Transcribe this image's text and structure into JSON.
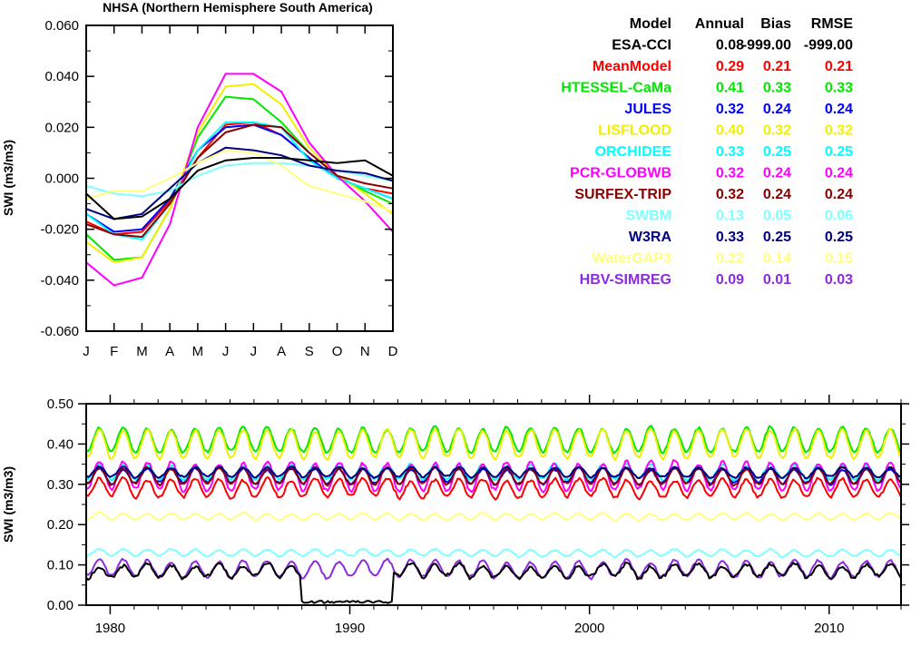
{
  "chart_data": [
    {
      "type": "line",
      "title": "NHSA (Northern Hemisphere South America)",
      "ylabel": "SWI (m3/m3)",
      "xlabel": "",
      "ylim": [
        -0.06,
        0.06
      ],
      "yticks": [
        "0.060",
        "0.040",
        "0.020",
        "0.000",
        "-0.020",
        "-0.040",
        "-0.060"
      ],
      "categories": [
        "J",
        "F",
        "M",
        "A",
        "M",
        "J",
        "J",
        "A",
        "S",
        "O",
        "N",
        "D"
      ],
      "series": [
        {
          "name": "MeanModel",
          "color": "#ff0000",
          "values": [
            -0.017,
            -0.022,
            -0.021,
            -0.009,
            0.008,
            0.021,
            0.022,
            0.017,
            0.008,
            0.0,
            -0.004,
            -0.006
          ]
        },
        {
          "name": "HTESSEL-CaMa",
          "color": "#00e800",
          "values": [
            -0.022,
            -0.032,
            -0.031,
            -0.012,
            0.016,
            0.032,
            0.031,
            0.022,
            0.01,
            0.001,
            -0.005,
            -0.01
          ]
        },
        {
          "name": "JULES",
          "color": "#0000ff",
          "values": [
            -0.014,
            -0.021,
            -0.02,
            -0.008,
            0.011,
            0.02,
            0.021,
            0.017,
            0.008,
            0.0,
            -0.004,
            -0.008
          ]
        },
        {
          "name": "LISFLOOD",
          "color": "#f0f000",
          "values": [
            -0.025,
            -0.033,
            -0.031,
            -0.012,
            0.018,
            0.036,
            0.037,
            0.029,
            0.012,
            0.001,
            -0.006,
            -0.014
          ]
        },
        {
          "name": "ORCHIDEE",
          "color": "#00ffff",
          "values": [
            -0.014,
            -0.022,
            -0.024,
            -0.01,
            0.011,
            0.022,
            0.022,
            0.02,
            0.007,
            0.0,
            -0.004,
            -0.008
          ]
        },
        {
          "name": "PCR-GLOBWB",
          "color": "#ff00ff",
          "values": [
            -0.033,
            -0.042,
            -0.039,
            -0.018,
            0.02,
            0.041,
            0.041,
            0.034,
            0.014,
            0.001,
            -0.009,
            -0.021
          ]
        },
        {
          "name": "SURFEX-TRIP",
          "color": "#8b0000",
          "values": [
            -0.018,
            -0.022,
            -0.023,
            -0.01,
            0.008,
            0.018,
            0.021,
            0.02,
            0.01,
            0.001,
            -0.002,
            -0.004
          ]
        },
        {
          "name": "SWBM",
          "color": "#80ffff",
          "values": [
            -0.003,
            -0.006,
            -0.007,
            -0.005,
            0.001,
            0.005,
            0.006,
            0.006,
            0.005,
            0.003,
            0.001,
            -0.001
          ]
        },
        {
          "name": "W3RA",
          "color": "#000080",
          "values": [
            -0.012,
            -0.016,
            -0.014,
            -0.004,
            0.006,
            0.012,
            0.011,
            0.009,
            0.005,
            0.003,
            0.002,
            -0.001
          ]
        },
        {
          "name": "WaterGAP3",
          "color": "#ffff80",
          "values": [
            -0.008,
            -0.005,
            -0.005,
            0.0,
            0.006,
            0.011,
            0.01,
            0.005,
            -0.003,
            -0.006,
            -0.009,
            -0.013
          ]
        },
        {
          "name": "ESA-CCI",
          "color": "#000000",
          "values": [
            -0.006,
            -0.016,
            -0.015,
            -0.008,
            0.003,
            0.007,
            0.008,
            0.008,
            0.007,
            0.006,
            0.007,
            0.001
          ]
        }
      ]
    },
    {
      "type": "line",
      "title": "",
      "ylabel": "SWI (m3/m3)",
      "xlabel": "",
      "xlim": [
        1979,
        2013
      ],
      "ylim": [
        0.0,
        0.5
      ],
      "xticks": [
        1980,
        1990,
        2000,
        2010
      ],
      "yticks": [
        "0.50",
        "0.40",
        "0.30",
        "0.20",
        "0.10",
        "0.00"
      ],
      "series": [
        {
          "name": "HTESSEL-CaMa",
          "color": "#00e800",
          "mean": 0.41,
          "amplitude": 0.03,
          "noise": 0.006
        },
        {
          "name": "LISFLOOD",
          "color": "#f0f000",
          "mean": 0.4,
          "amplitude": 0.035,
          "noise": 0.006
        },
        {
          "name": "ORCHIDEE",
          "color": "#00ffff",
          "mean": 0.33,
          "amplitude": 0.018,
          "noise": 0.005
        },
        {
          "name": "PCR-GLOBWB",
          "color": "#ff00ff",
          "mean": 0.32,
          "amplitude": 0.035,
          "noise": 0.008
        },
        {
          "name": "JULES",
          "color": "#0000ff",
          "mean": 0.32,
          "amplitude": 0.018,
          "noise": 0.005
        },
        {
          "name": "SURFEX-TRIP",
          "color": "#8b0000",
          "mean": 0.32,
          "amplitude": 0.02,
          "noise": 0.005
        },
        {
          "name": "W3RA",
          "color": "#000080",
          "mean": 0.33,
          "amplitude": 0.012,
          "noise": 0.004
        },
        {
          "name": "MeanModel",
          "color": "#ff0000",
          "mean": 0.29,
          "amplitude": 0.022,
          "noise": 0.007
        },
        {
          "name": "WaterGAP3",
          "color": "#ffff80",
          "mean": 0.22,
          "amplitude": 0.008,
          "noise": 0.003
        },
        {
          "name": "SWBM",
          "color": "#80ffff",
          "mean": 0.13,
          "amplitude": 0.008,
          "noise": 0.003
        },
        {
          "name": "HBV-SIMREG",
          "color": "#8a2be2",
          "mean": 0.09,
          "amplitude": 0.02,
          "noise": 0.006
        },
        {
          "name": "ESA-CCI",
          "color": "#000000",
          "mean": 0.085,
          "amplitude": 0.015,
          "noise": 0.008,
          "gap": [
            1988.0,
            1991.8
          ],
          "gap_value": 0.005
        }
      ]
    }
  ],
  "legend_table": {
    "header": [
      "Model",
      "Annual",
      "Bias",
      "RMSE"
    ],
    "rows": [
      {
        "name": "ESA-CCI",
        "color": "#000000",
        "annual": "0.08",
        "bias": "-999.00",
        "rmse": "-999.00"
      },
      {
        "name": "MeanModel",
        "color": "#ff0000",
        "annual": "0.29",
        "bias": "0.21",
        "rmse": "0.21"
      },
      {
        "name": "HTESSEL-CaMa",
        "color": "#00e800",
        "annual": "0.41",
        "bias": "0.33",
        "rmse": "0.33"
      },
      {
        "name": "JULES",
        "color": "#0000ff",
        "annual": "0.32",
        "bias": "0.24",
        "rmse": "0.24"
      },
      {
        "name": "LISFLOOD",
        "color": "#f0f000",
        "annual": "0.40",
        "bias": "0.32",
        "rmse": "0.32"
      },
      {
        "name": "ORCHIDEE",
        "color": "#00ffff",
        "annual": "0.33",
        "bias": "0.25",
        "rmse": "0.25"
      },
      {
        "name": "PCR-GLOBWB",
        "color": "#ff00ff",
        "annual": "0.32",
        "bias": "0.24",
        "rmse": "0.24"
      },
      {
        "name": "SURFEX-TRIP",
        "color": "#8b0000",
        "annual": "0.32",
        "bias": "0.24",
        "rmse": "0.24"
      },
      {
        "name": "SWBM",
        "color": "#80ffff",
        "annual": "0.13",
        "bias": "0.05",
        "rmse": "0.06"
      },
      {
        "name": "W3RA",
        "color": "#000080",
        "annual": "0.33",
        "bias": "0.25",
        "rmse": "0.25"
      },
      {
        "name": "WaterGAP3",
        "color": "#ffff80",
        "annual": "0.22",
        "bias": "0.14",
        "rmse": "0.15"
      },
      {
        "name": "HBV-SIMREG",
        "color": "#8a2be2",
        "annual": "0.09",
        "bias": "0.01",
        "rmse": "0.03"
      }
    ]
  }
}
